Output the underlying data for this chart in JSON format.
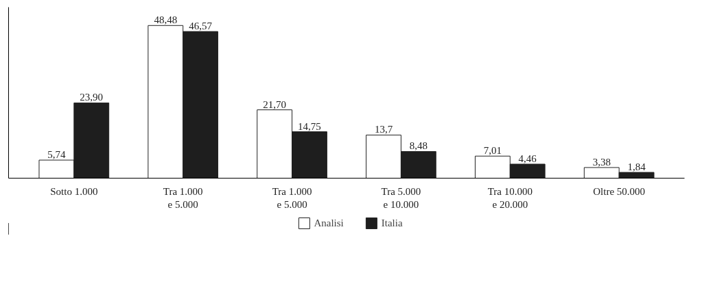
{
  "chart_data": {
    "type": "bar",
    "categories": [
      "Sotto 1.000",
      "Tra 1.000\ne 5.000",
      "Tra 1.000\ne 5.000",
      "Tra 5.000\ne 10.000",
      "Tra 10.000\ne 20.000",
      "Oltre 50.000"
    ],
    "series": [
      {
        "name": "Analisi",
        "color": "#ffffff",
        "values": [
          5.74,
          48.48,
          21.7,
          13.7,
          7.01,
          3.38
        ],
        "value_labels": [
          "5,74",
          "48,48",
          "21,70",
          "13,7",
          "7,01",
          "3,38"
        ]
      },
      {
        "name": "Italia",
        "color": "#1e1e1e",
        "values": [
          23.9,
          46.57,
          14.75,
          8.48,
          4.46,
          1.84
        ],
        "value_labels": [
          "23,90",
          "46,57",
          "14,75",
          "8,48",
          "4,46",
          "1,84"
        ]
      }
    ],
    "legend": "bottom"
  }
}
